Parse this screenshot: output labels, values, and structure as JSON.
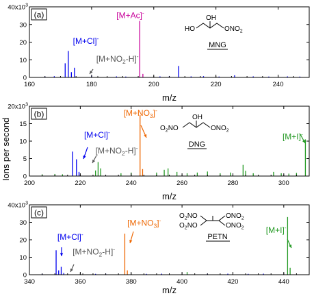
{
  "figure": {
    "ylabel": "Ions per second",
    "xlabel": "m/z"
  },
  "chart_data": [
    {
      "type": "bar",
      "panel_label": "(a)",
      "compound": "MNG",
      "structure": {
        "top": "OH",
        "left": "HO",
        "right": "ONO",
        "right_sub": "2"
      },
      "xlim": [
        160,
        250
      ],
      "xticks": [
        160,
        180,
        200,
        220,
        240
      ],
      "ylim": [
        0,
        40
      ],
      "yticks": [
        0,
        10,
        20,
        30,
        40
      ],
      "y_multiplier": "x10",
      "y_exponent": "3",
      "peaks": [
        {
          "x": 171.5,
          "y": 8,
          "color": "#0000ee"
        },
        {
          "x": 172.5,
          "y": 15,
          "color": "#0000ee"
        },
        {
          "x": 173.5,
          "y": 3,
          "color": "#0000ee"
        },
        {
          "x": 174.5,
          "y": 5.5,
          "color": "#0000ee"
        },
        {
          "x": 180,
          "y": 1,
          "color": "#0000ee"
        },
        {
          "x": 182,
          "y": 0.8,
          "color": "#555555"
        },
        {
          "x": 195.5,
          "y": 32,
          "color": "#c8009a"
        },
        {
          "x": 196.5,
          "y": 2,
          "color": "#c8009a"
        },
        {
          "x": 208,
          "y": 6.5,
          "color": "#0000ee"
        },
        {
          "x": 165,
          "y": 0.5,
          "color": "#0000ee"
        },
        {
          "x": 168,
          "y": 0.7,
          "color": "#0000ee"
        },
        {
          "x": 188,
          "y": 0.6,
          "color": "#0000ee"
        },
        {
          "x": 191,
          "y": 0.5,
          "color": "#0000ee"
        },
        {
          "x": 202,
          "y": 0.6,
          "color": "#0000ee"
        },
        {
          "x": 205,
          "y": 0.8,
          "color": "#0000ee"
        },
        {
          "x": 212,
          "y": 0.6,
          "color": "#0000ee"
        },
        {
          "x": 216,
          "y": 0.7,
          "color": "#0000ee"
        },
        {
          "x": 221,
          "y": 0.5,
          "color": "#0000ee"
        },
        {
          "x": 226,
          "y": 1.2,
          "color": "#0000ee"
        },
        {
          "x": 232,
          "y": 0.6,
          "color": "#0000ee"
        },
        {
          "x": 237,
          "y": 0.5,
          "color": "#0000ee"
        },
        {
          "x": 243,
          "y": 0.6,
          "color": "#0000ee"
        },
        {
          "x": 247,
          "y": 0.5,
          "color": "#0000ee"
        }
      ],
      "annotations": [
        {
          "text": "[M+Cl]",
          "sup": "-",
          "color": "#0000ee",
          "x": 174,
          "y": 19
        },
        {
          "text": "[M+NO",
          "sub": "2",
          "tail": "-H]",
          "sup": "-",
          "color": "#555555",
          "x": 181.5,
          "y": 9
        },
        {
          "text": "[M+Ac]",
          "sup": "-",
          "color": "#c8009a",
          "x": 188,
          "y": 33.5
        }
      ]
    },
    {
      "type": "bar",
      "panel_label": "(b)",
      "compound": "DNG",
      "structure": {
        "top": "OH",
        "left": "O",
        "left_sub": "2",
        "left_tail": "NO",
        "right": "ONO",
        "right_sub": "2"
      },
      "xlim": [
        200,
        310
      ],
      "xticks": [
        200,
        220,
        240,
        260,
        280,
        300
      ],
      "ylim": [
        0,
        20
      ],
      "yticks": [
        0,
        5,
        10,
        15,
        20
      ],
      "y_multiplier": "x10",
      "y_exponent": "3",
      "peaks": [
        {
          "x": 217,
          "y": 7,
          "color": "#0000ee"
        },
        {
          "x": 218.5,
          "y": 4.8,
          "color": "#0000ee"
        },
        {
          "x": 219.5,
          "y": 1.2,
          "color": "#0000ee"
        },
        {
          "x": 226,
          "y": 1.6,
          "color": "#229922"
        },
        {
          "x": 227,
          "y": 4,
          "color": "#229922"
        },
        {
          "x": 228,
          "y": 2.2,
          "color": "#229922"
        },
        {
          "x": 243.5,
          "y": 17.5,
          "color": "#ee6600"
        },
        {
          "x": 244.5,
          "y": 2,
          "color": "#ee6600"
        },
        {
          "x": 236,
          "y": 0.8,
          "color": "#229922"
        },
        {
          "x": 240,
          "y": 1,
          "color": "#229922"
        },
        {
          "x": 250,
          "y": 1,
          "color": "#229922"
        },
        {
          "x": 253,
          "y": 1.8,
          "color": "#229922"
        },
        {
          "x": 254.5,
          "y": 2.2,
          "color": "#229922"
        },
        {
          "x": 258,
          "y": 1.2,
          "color": "#229922"
        },
        {
          "x": 262,
          "y": 0.8,
          "color": "#229922"
        },
        {
          "x": 266,
          "y": 1,
          "color": "#229922"
        },
        {
          "x": 270,
          "y": 1.3,
          "color": "#229922"
        },
        {
          "x": 275,
          "y": 0.8,
          "color": "#229922"
        },
        {
          "x": 279,
          "y": 1,
          "color": "#229922"
        },
        {
          "x": 284,
          "y": 3.2,
          "color": "#229922"
        },
        {
          "x": 285,
          "y": 1.5,
          "color": "#229922"
        },
        {
          "x": 288,
          "y": 0.8,
          "color": "#229922"
        },
        {
          "x": 296,
          "y": 1.2,
          "color": "#229922"
        },
        {
          "x": 299,
          "y": 0.8,
          "color": "#229922"
        },
        {
          "x": 302,
          "y": 0.7,
          "color": "#229922"
        },
        {
          "x": 305,
          "y": 0.9,
          "color": "#229922"
        },
        {
          "x": 308.5,
          "y": 10.5,
          "color": "#229922"
        },
        {
          "x": 205,
          "y": 0.5,
          "color": "#229922"
        },
        {
          "x": 210,
          "y": 0.6,
          "color": "#229922"
        },
        {
          "x": 213,
          "y": 0.5,
          "color": "#229922"
        }
      ],
      "annotations": [
        {
          "text": "[M+Cl]",
          "sup": "-",
          "color": "#0000ee",
          "x": 221.5,
          "y": 11
        },
        {
          "text": "[M+NO",
          "sub": "2",
          "tail": "-H]",
          "sup": "-",
          "color": "#555555",
          "x": 226,
          "y": 6.5
        },
        {
          "text": "[M+NO",
          "sub": "3",
          "tail": "]",
          "sup": "-",
          "color": "#ee6600",
          "x": 237,
          "y": 17.3
        },
        {
          "text": "[M+I]",
          "sup": "-",
          "color": "#229922",
          "x": 299.5,
          "y": 10.5
        }
      ]
    },
    {
      "type": "bar",
      "panel_label": "(c)",
      "compound": "PETN",
      "structure": {
        "tl": "O",
        "tl_sub": "2",
        "tl_tail": "NO",
        "bl": "O",
        "bl_sub": "2",
        "bl_tail": "NO",
        "tr": "ONO",
        "tr_sub": "2",
        "br": "ONO",
        "br_sub": "2"
      },
      "xlim": [
        340,
        450
      ],
      "xticks": [
        340,
        360,
        380,
        400,
        420,
        440
      ],
      "ylim": [
        0,
        40
      ],
      "yticks": [
        0,
        10,
        20,
        30,
        40
      ],
      "y_multiplier": "x10",
      "y_exponent": "3",
      "peaks": [
        {
          "x": 350.5,
          "y": 14,
          "color": "#0000ee"
        },
        {
          "x": 351.5,
          "y": 2.5,
          "color": "#0000ee"
        },
        {
          "x": 352.5,
          "y": 4.5,
          "color": "#0000ee"
        },
        {
          "x": 353.5,
          "y": 1,
          "color": "#0000ee"
        },
        {
          "x": 361,
          "y": 0.8,
          "color": "#555555"
        },
        {
          "x": 377.5,
          "y": 23.5,
          "color": "#ee6600"
        },
        {
          "x": 378.5,
          "y": 2.5,
          "color": "#ee6600"
        },
        {
          "x": 402,
          "y": 1.5,
          "color": "#229922"
        },
        {
          "x": 441.5,
          "y": 33,
          "color": "#229922"
        },
        {
          "x": 442.5,
          "y": 4,
          "color": "#229922"
        },
        {
          "x": 345,
          "y": 0.5,
          "color": "#0000ee"
        },
        {
          "x": 366,
          "y": 0.5,
          "color": "#0000ee"
        },
        {
          "x": 370,
          "y": 0.6,
          "color": "#0000ee"
        },
        {
          "x": 386,
          "y": 0.5,
          "color": "#0000ee"
        },
        {
          "x": 392,
          "y": 0.6,
          "color": "#0000ee"
        },
        {
          "x": 410,
          "y": 0.5,
          "color": "#0000ee"
        },
        {
          "x": 418,
          "y": 0.6,
          "color": "#0000ee"
        },
        {
          "x": 426,
          "y": 0.5,
          "color": "#0000ee"
        },
        {
          "x": 432,
          "y": 0.6,
          "color": "#0000ee"
        }
      ],
      "annotations": [
        {
          "text": "[M+Cl]",
          "sup": "-",
          "color": "#0000ee",
          "x": 351,
          "y": 20
        },
        {
          "text": "[M+NO",
          "sub": "2",
          "tail": "-H]",
          "sup": "-",
          "color": "#555555",
          "x": 357,
          "y": 11.5
        },
        {
          "text": "[M+NO",
          "sub": "3",
          "tail": "]",
          "sup": "-",
          "color": "#ee6600",
          "x": 378.5,
          "y": 28
        },
        {
          "text": "[M+I]",
          "sup": "-",
          "color": "#229922",
          "x": 433,
          "y": 24
        }
      ]
    }
  ]
}
